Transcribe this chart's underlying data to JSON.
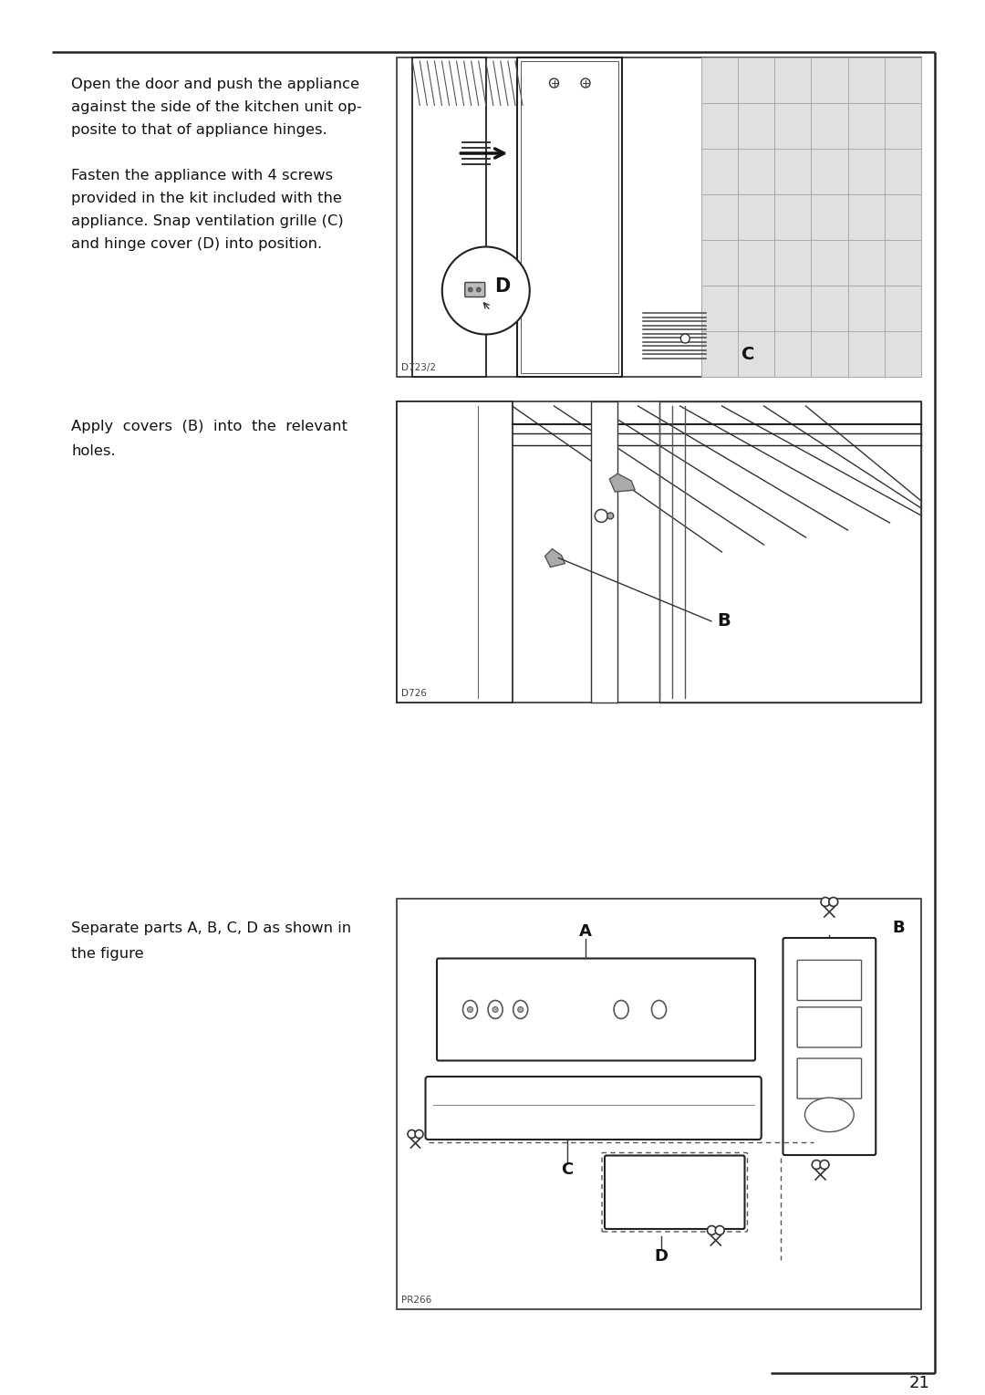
{
  "page_width": 10.8,
  "page_height": 15.29,
  "bg_color": "#ffffff",
  "text_color": "#111111",
  "page_number": "21",
  "section1_text": [
    "Open the door and push the appliance",
    "against the side of the kitchen unit op-",
    "posite to that of appliance hinges.",
    "",
    "Fasten the appliance with 4 screws",
    "provided in the kit included with the",
    "appliance. Snap ventilation grille (C)",
    "and hinge cover (D) into position."
  ],
  "section2_text": [
    "Apply  covers  (B)  into  the  relevant",
    "holes."
  ],
  "section3_text": [
    "Separate parts A, B, C, D as shown in",
    "the figure"
  ],
  "diag1_label": "D723/2",
  "diag1_C": "C",
  "diag1_D": "D",
  "diag2_label": "D726",
  "diag2_B": "B",
  "diag3_label": "PR266",
  "diag3_A": "A",
  "diag3_B": "B",
  "diag3_C": "C",
  "diag3_D": "D"
}
